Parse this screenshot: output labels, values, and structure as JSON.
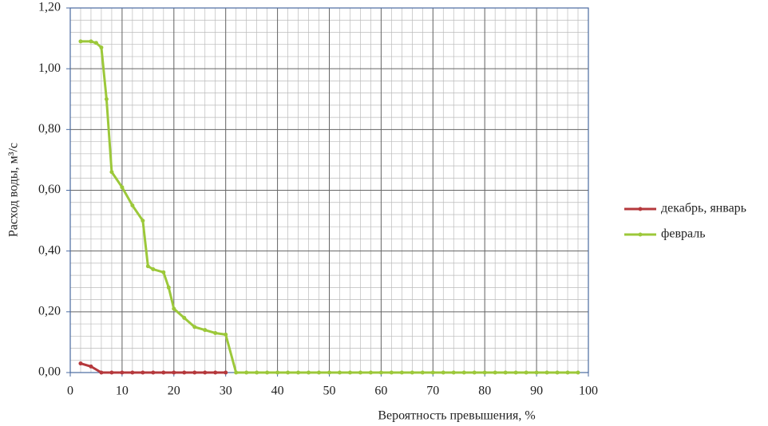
{
  "chart_data": {
    "type": "line",
    "xlabel": "Вероятность превышения, %",
    "ylabel": "Расход воды, м³/с",
    "xlim": [
      0,
      100
    ],
    "xticks": [
      0,
      10,
      20,
      30,
      40,
      50,
      60,
      70,
      80,
      90,
      100
    ],
    "ylim": [
      0,
      1.2
    ],
    "yticks": [
      {
        "value": 0,
        "label": "0,00"
      },
      {
        "value": 0.2,
        "label": "0,20"
      },
      {
        "value": 0.4,
        "label": "0,40"
      },
      {
        "value": 0.6,
        "label": "0,60"
      },
      {
        "value": 0.8,
        "label": "0,80"
      },
      {
        "value": 1.0,
        "label": "1,00"
      },
      {
        "value": 1.2,
        "label": "1,20"
      }
    ],
    "grid": true,
    "minor_grid": {
      "x": 2,
      "y": 0.04
    },
    "legend": "right",
    "series": [
      {
        "name": "декабрь, январь",
        "color": "#b5383c",
        "x": [
          2,
          4,
          6,
          8,
          10,
          12,
          14,
          16,
          18,
          20,
          22,
          24,
          26,
          28,
          30
        ],
        "values": [
          0.03,
          0.02,
          0,
          0,
          0,
          0,
          0,
          0,
          0,
          0,
          0,
          0,
          0,
          0,
          0
        ]
      },
      {
        "name": "февраль",
        "color": "#9cc83a",
        "x": [
          2,
          4,
          5,
          6,
          7,
          8,
          10,
          12,
          14,
          15,
          16,
          18,
          19,
          20,
          22,
          24,
          26,
          28,
          30,
          32,
          34,
          36,
          38,
          40,
          42,
          44,
          46,
          48,
          50,
          52,
          54,
          56,
          58,
          60,
          62,
          64,
          66,
          68,
          70,
          72,
          74,
          76,
          78,
          80,
          82,
          84,
          86,
          88,
          90,
          92,
          94,
          96,
          98
        ],
        "values": [
          1.09,
          1.09,
          1.085,
          1.07,
          0.9,
          0.66,
          0.61,
          0.55,
          0.5,
          0.35,
          0.34,
          0.33,
          0.28,
          0.21,
          0.18,
          0.15,
          0.14,
          0.13,
          0.125,
          0,
          0,
          0,
          0,
          0,
          0,
          0,
          0,
          0,
          0,
          0,
          0,
          0,
          0,
          0,
          0,
          0,
          0,
          0,
          0,
          0,
          0,
          0,
          0,
          0,
          0,
          0,
          0,
          0,
          0,
          0,
          0,
          0,
          0
        ]
      }
    ]
  }
}
